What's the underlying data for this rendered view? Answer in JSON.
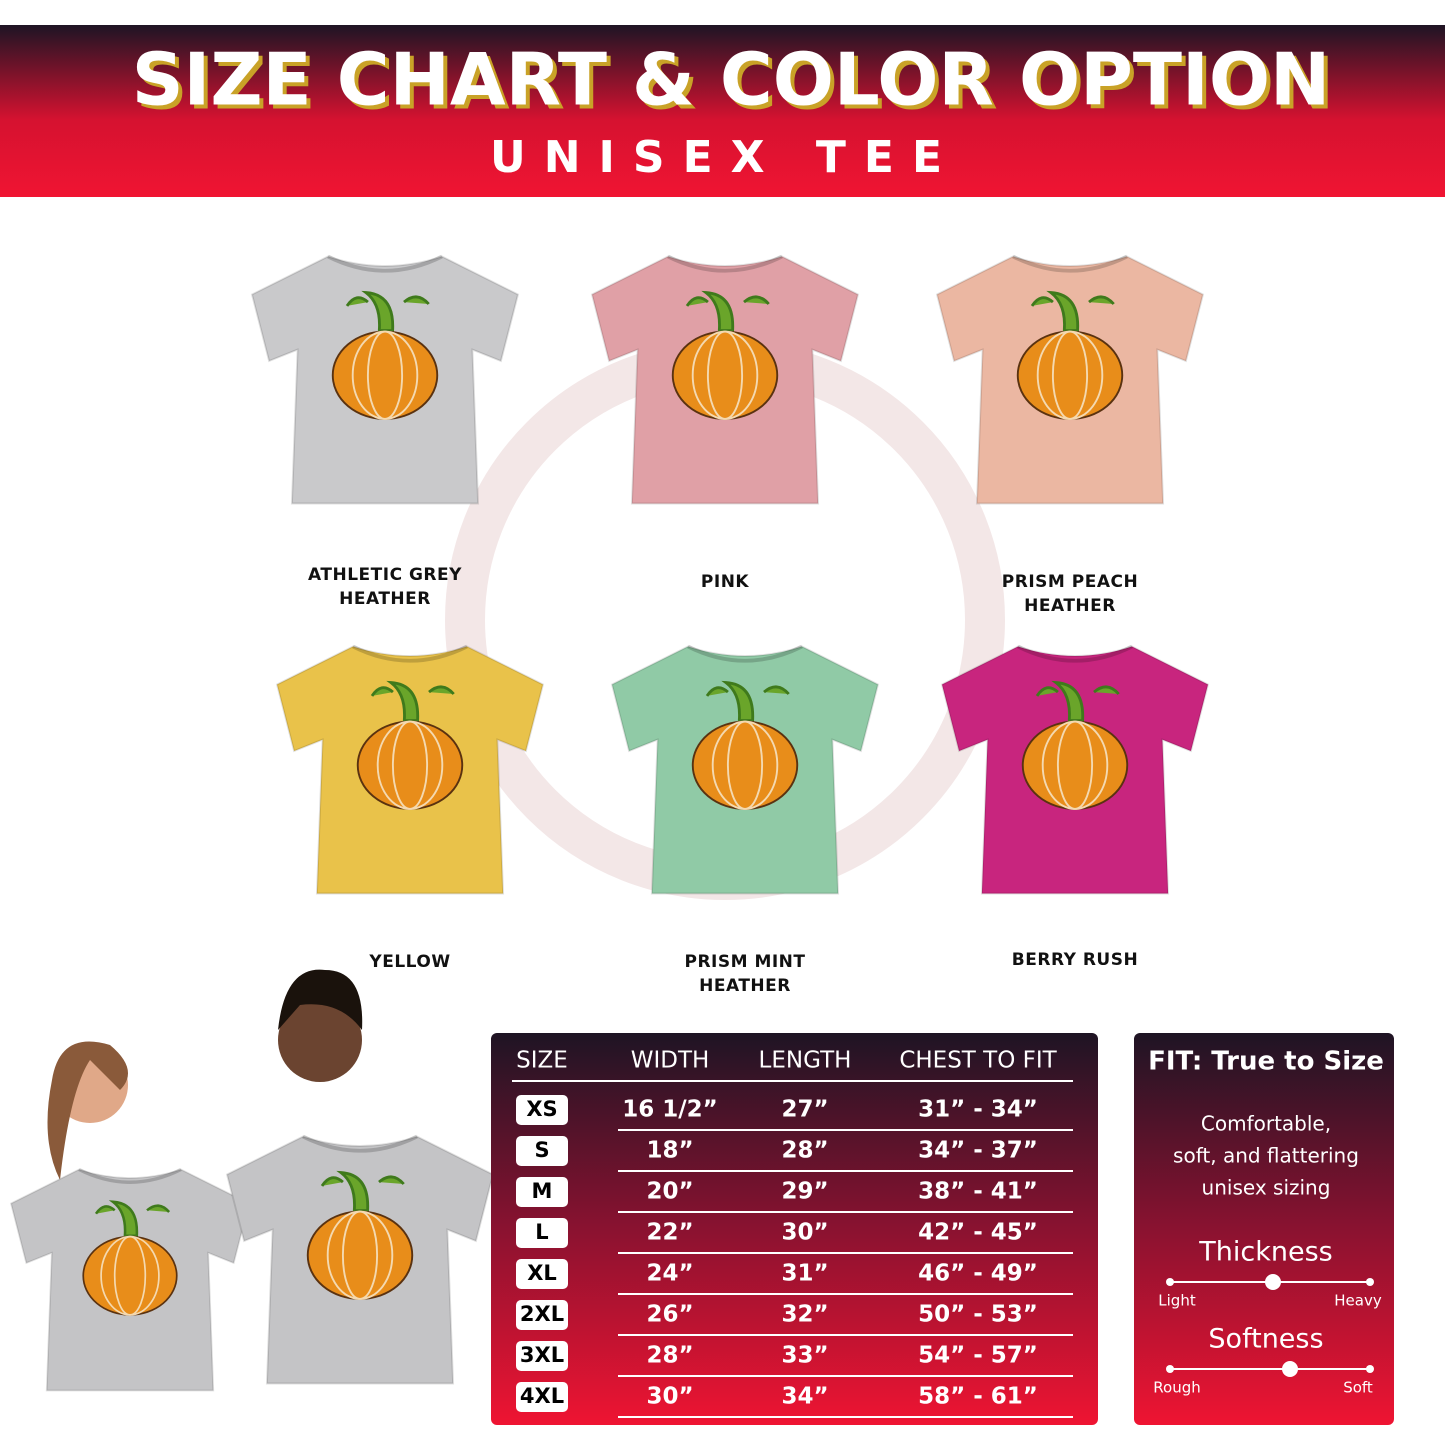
{
  "header": {
    "title": "SIZE CHART & COLOR OPTION",
    "subtitle": "UNISEX TEE"
  },
  "colors": [
    {
      "label": [
        "ATHLETIC GREY",
        "HEATHER"
      ],
      "color": "#c9c9cb"
    },
    {
      "label": [
        "PINK"
      ],
      "color": "#e0a0a6"
    },
    {
      "label": [
        "PRISM PEACH",
        "HEATHER"
      ],
      "color": "#ebb7a2"
    },
    {
      "label": [
        "YELLOW"
      ],
      "color": "#e9c24a"
    },
    {
      "label": [
        "PRISM MINT",
        "HEATHER"
      ],
      "color": "#90caa6"
    },
    {
      "label": [
        "BERRY RUSH"
      ],
      "color": "#c8257e"
    }
  ],
  "size_table": {
    "headers": [
      "SIZE",
      "WIDTH",
      "LENGTH",
      "CHEST TO FIT"
    ],
    "rows": [
      [
        "XS",
        "16 1/2”",
        "27”",
        "31” - 34”"
      ],
      [
        "S",
        "18”",
        "28”",
        "34” - 37”"
      ],
      [
        "M",
        "20”",
        "29”",
        "38” - 41”"
      ],
      [
        "L",
        "22”",
        "30”",
        "42” - 45”"
      ],
      [
        "XL",
        "24”",
        "31”",
        "46” - 49”"
      ],
      [
        "2XL",
        "26”",
        "32”",
        "50” - 53”"
      ],
      [
        "3XL",
        "28”",
        "33”",
        "54” - 57”"
      ],
      [
        "4XL",
        "30”",
        "34”",
        "58” - 61”"
      ]
    ]
  },
  "fit": {
    "title": "FIT: True to Size",
    "description": [
      "Comfortable,",
      "soft, and flattering",
      "unisex sizing"
    ],
    "thickness": {
      "label": "Thickness",
      "low": "Light",
      "high": "Heavy"
    },
    "softness": {
      "label": "Softness",
      "low": "Rough",
      "high": "Soft"
    }
  }
}
